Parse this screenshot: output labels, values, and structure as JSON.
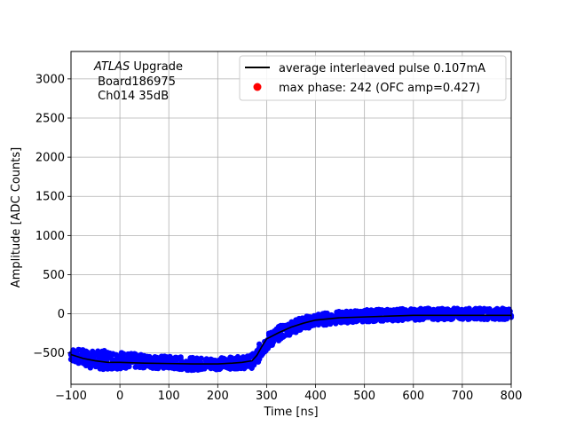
{
  "chart_data": {
    "type": "scatter",
    "title": "",
    "xlabel": "Time [ns]",
    "ylabel": "Amplitude [ADC Counts]",
    "xlim": [
      -100,
      800
    ],
    "ylim": [
      -900,
      3350
    ],
    "xticks": [
      -100,
      0,
      100,
      200,
      300,
      400,
      500,
      600,
      700,
      800
    ],
    "yticks": [
      -500,
      0,
      500,
      1000,
      1500,
      2000,
      2500,
      3000
    ],
    "grid": true,
    "legend_position": "top-right",
    "annotation": {
      "italic": "ATLAS",
      "line1_rest": " Upgrade",
      "line2": " Board186975",
      "line3": " Ch014 35dB"
    },
    "series": [
      {
        "name": "average interleaved pulse 0.107mA",
        "kind": "line",
        "color": "#000000",
        "x": [
          -100,
          -75,
          -50,
          -25,
          0,
          50,
          100,
          150,
          200,
          230,
          250,
          270,
          280,
          290,
          300,
          325,
          350,
          375,
          400,
          450,
          500,
          550,
          600,
          650,
          700,
          750,
          800
        ],
        "y": [
          -520,
          -570,
          -600,
          -620,
          -620,
          -630,
          -635,
          -640,
          -640,
          -630,
          -620,
          -600,
          -530,
          -420,
          -320,
          -240,
          -170,
          -120,
          -80,
          -50,
          -40,
          -30,
          -20,
          -20,
          -20,
          -20,
          -20
        ]
      },
      {
        "name": "max phase: 242 (OFC amp=0.427)",
        "kind": "scatter",
        "color": "#ff0000",
        "x": [],
        "y": []
      },
      {
        "name": "",
        "kind": "scatter",
        "color": "#0000ff",
        "band": [
          {
            "x": -100,
            "lo": -600,
            "hi": -440
          },
          {
            "x": -60,
            "lo": -700,
            "hi": -470
          },
          {
            "x": -30,
            "lo": -710,
            "hi": -470
          },
          {
            "x": 0,
            "lo": -700,
            "hi": -480
          },
          {
            "x": 50,
            "lo": -690,
            "hi": -530
          },
          {
            "x": 100,
            "lo": -710,
            "hi": -540
          },
          {
            "x": 150,
            "lo": -720,
            "hi": -560
          },
          {
            "x": 200,
            "lo": -710,
            "hi": -560
          },
          {
            "x": 240,
            "lo": -700,
            "hi": -550
          },
          {
            "x": 260,
            "lo": -700,
            "hi": -540
          },
          {
            "x": 275,
            "lo": -690,
            "hi": -500
          },
          {
            "x": 290,
            "lo": -560,
            "hi": -330
          },
          {
            "x": 300,
            "lo": -470,
            "hi": -260
          },
          {
            "x": 325,
            "lo": -340,
            "hi": -160
          },
          {
            "x": 350,
            "lo": -260,
            "hi": -90
          },
          {
            "x": 375,
            "lo": -200,
            "hi": -40
          },
          {
            "x": 400,
            "lo": -160,
            "hi": 0
          },
          {
            "x": 450,
            "lo": -120,
            "hi": 30
          },
          {
            "x": 500,
            "lo": -100,
            "hi": 50
          },
          {
            "x": 550,
            "lo": -90,
            "hi": 60
          },
          {
            "x": 600,
            "lo": -80,
            "hi": 70
          },
          {
            "x": 700,
            "lo": -70,
            "hi": 70
          },
          {
            "x": 800,
            "lo": -70,
            "hi": 70
          }
        ]
      }
    ]
  }
}
